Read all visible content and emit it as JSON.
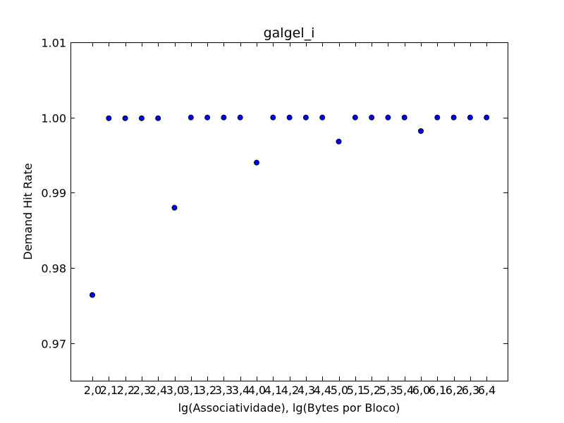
{
  "chart_data": {
    "type": "scatter",
    "title": "galgel_i",
    "xlabel": "lg(Associatividade), lg(Bytes por Bloco)",
    "ylabel": "Demand Hit Rate",
    "categories": [
      "2,0",
      "2,1",
      "2,2",
      "2,3",
      "2,4",
      "3,0",
      "3,1",
      "3,2",
      "3,3",
      "3,4",
      "4,0",
      "4,1",
      "4,2",
      "4,3",
      "4,4",
      "5,0",
      "5,1",
      "5,2",
      "5,3",
      "5,4",
      "6,0",
      "6,1",
      "6,2",
      "6,3",
      "6,4"
    ],
    "values": [
      0.9764,
      0.9999,
      0.9999,
      0.9999,
      0.9999,
      0.988,
      1.0,
      1.0,
      1.0,
      1.0,
      0.994,
      1.0,
      1.0,
      1.0,
      1.0,
      0.9968,
      1.0,
      1.0,
      1.0,
      1.0,
      0.9982,
      1.0,
      1.0,
      1.0,
      1.0
    ],
    "ylim": [
      0.965,
      1.01
    ],
    "yticks": [
      "0.97",
      "0.98",
      "0.99",
      "1.00",
      "1.01"
    ],
    "grid": false,
    "marker_color": "#0000ff"
  }
}
